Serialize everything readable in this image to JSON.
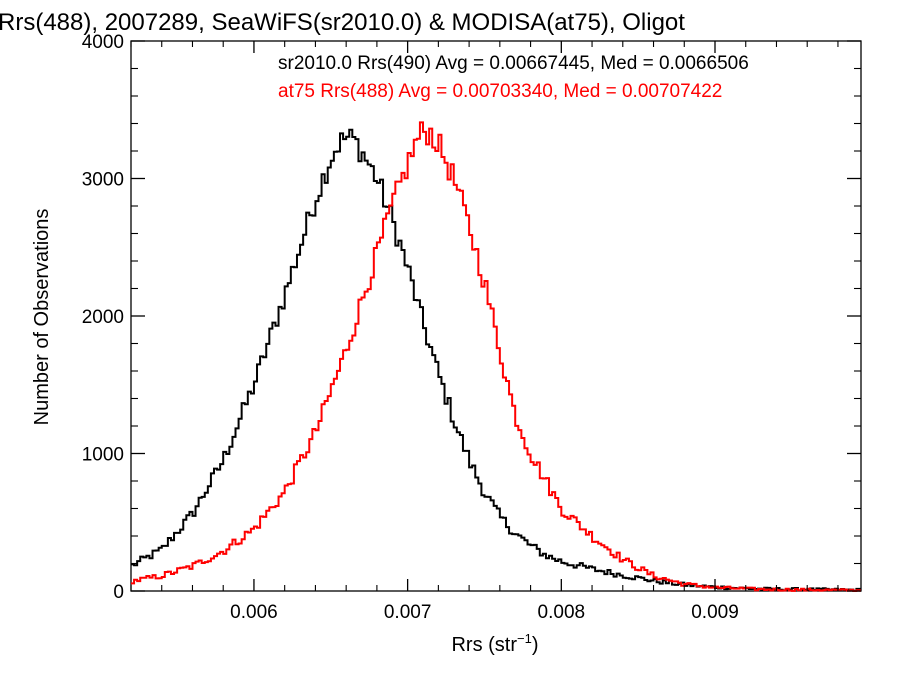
{
  "chart_data": {
    "type": "line",
    "title": "Rrs(488), 2007289, SeaWiFS(sr2010.0) & MODISA(at75), Oligot",
    "xlabel_main": "Rrs (str",
    "xlabel_sup": "−1",
    "xlabel_close": ")",
    "ylabel": "Number of Observations",
    "xlim": [
      0.0052,
      0.00995
    ],
    "ylim": [
      0,
      4000
    ],
    "x_ticks": [
      0.006,
      0.007,
      0.008,
      0.009
    ],
    "x_tick_labels": [
      "0.006",
      "0.007",
      "0.008",
      "0.009"
    ],
    "y_ticks": [
      0,
      1000,
      2000,
      3000,
      4000
    ],
    "y_tick_labels": [
      "0",
      "1000",
      "2000",
      "3000",
      "4000"
    ],
    "grid": false,
    "bin_width": 2e-05,
    "series": [
      {
        "color": "#000000",
        "label": "sr2010.0 Rrs(490) Avg = 0.00667445, Med = 0.0066506",
        "x": [
          0.0052,
          0.0054,
          0.0056,
          0.0058,
          0.006,
          0.0062,
          0.0064,
          0.0065,
          0.00655,
          0.0066,
          0.00665,
          0.0067,
          0.0068,
          0.0069,
          0.007,
          0.0071,
          0.0072,
          0.0073,
          0.0074,
          0.0075,
          0.0076,
          0.0077,
          0.0078,
          0.0079,
          0.008,
          0.0082,
          0.0084,
          0.0086,
          0.0088,
          0.009,
          0.0093,
          0.00995
        ],
        "y": [
          180,
          300,
          560,
          950,
          1500,
          2150,
          2850,
          3150,
          3250,
          3300,
          3280,
          3200,
          3000,
          2700,
          2350,
          1950,
          1580,
          1250,
          950,
          720,
          540,
          420,
          330,
          260,
          215,
          160,
          115,
          75,
          45,
          28,
          15,
          8
        ]
      },
      {
        "color": "#ff0000",
        "label": "at75 Rrs(488) Avg = 0.00703340, Med = 0.00707422",
        "x": [
          0.0052,
          0.0054,
          0.0056,
          0.0058,
          0.006,
          0.0062,
          0.0064,
          0.0066,
          0.0068,
          0.0069,
          0.007,
          0.00705,
          0.0071,
          0.00715,
          0.0072,
          0.0073,
          0.0074,
          0.0075,
          0.0076,
          0.0077,
          0.0078,
          0.0079,
          0.008,
          0.0082,
          0.0084,
          0.0086,
          0.0088,
          0.009,
          0.0093,
          0.00995
        ],
        "y": [
          70,
          110,
          180,
          290,
          450,
          720,
          1150,
          1750,
          2450,
          2800,
          3100,
          3250,
          3350,
          3330,
          3250,
          3000,
          2650,
          2250,
          1750,
          1280,
          1000,
          800,
          600,
          400,
          230,
          110,
          50,
          25,
          12,
          5
        ]
      }
    ],
    "legend_placement": "top-right, text lines colored by series"
  }
}
